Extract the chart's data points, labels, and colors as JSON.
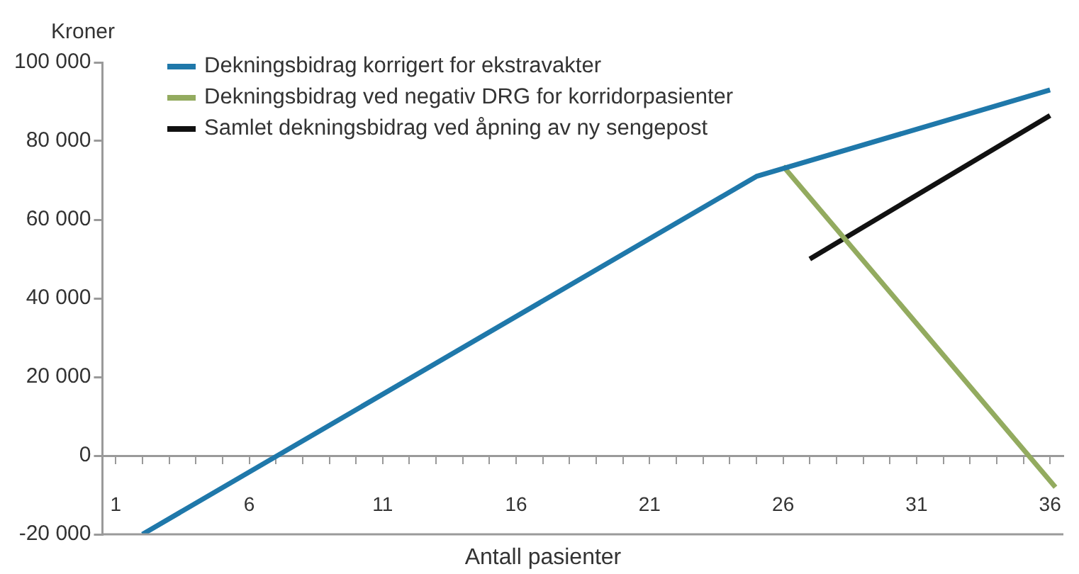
{
  "chart_data": {
    "type": "line",
    "xlabel": "Antall pasienter",
    "ylabel": "Kroner",
    "xlim": [
      0.5,
      36.5
    ],
    "ylim": [
      -20000,
      100000
    ],
    "xticks": [
      1,
      {
        "value": 2,
        "label": null
      },
      {
        "value": 3,
        "label": null
      },
      {
        "value": 4,
        "label": null
      },
      {
        "value": 5,
        "label": null
      },
      6,
      {
        "value": 7,
        "label": null
      },
      {
        "value": 8,
        "label": null
      },
      {
        "value": 9,
        "label": null
      },
      {
        "value": 10,
        "label": null
      },
      11,
      {
        "value": 12,
        "label": null
      },
      {
        "value": 13,
        "label": null
      },
      {
        "value": 14,
        "label": null
      },
      {
        "value": 15,
        "label": null
      },
      16,
      {
        "value": 17,
        "label": null
      },
      {
        "value": 18,
        "label": null
      },
      {
        "value": 19,
        "label": null
      },
      {
        "value": 20,
        "label": null
      },
      21,
      {
        "value": 22,
        "label": null
      },
      {
        "value": 23,
        "label": null
      },
      {
        "value": 24,
        "label": null
      },
      {
        "value": 25,
        "label": null
      },
      26,
      {
        "value": 27,
        "label": null
      },
      {
        "value": 28,
        "label": null
      },
      {
        "value": 29,
        "label": null
      },
      {
        "value": 30,
        "label": null
      },
      31,
      {
        "value": 32,
        "label": null
      },
      {
        "value": 33,
        "label": null
      },
      {
        "value": 34,
        "label": null
      },
      {
        "value": 35,
        "label": null
      },
      36
    ],
    "yticks": [
      {
        "value": -20000,
        "label": "-20 000"
      },
      0,
      {
        "value": 20000,
        "label": "20 000"
      },
      {
        "value": 40000,
        "label": "40 000"
      },
      {
        "value": 60000,
        "label": "60 000"
      },
      {
        "value": 80000,
        "label": "80 000"
      },
      {
        "value": 100000,
        "label": "100 000"
      }
    ],
    "legend": "top left",
    "marker": "none",
    "line_style": "solid",
    "series": [
      {
        "name": "Dekningsbidrag korrigert for ekstravakter",
        "color": "#1f78aa",
        "x": [
          2,
          25,
          36
        ],
        "values": [
          -20000,
          71000,
          93000
        ]
      },
      {
        "name": "Dekningsbidrag ved negativ DRG for korridorpasienter",
        "color": "#93ab5f",
        "x": [
          26,
          36.2
        ],
        "values": [
          73600,
          -8000
        ]
      },
      {
        "name": "Samlet dekningsbidrag ved åpning av ny sengepost",
        "color": "#111111",
        "x": [
          27,
          36
        ],
        "values": [
          50000,
          86500
        ]
      }
    ]
  }
}
